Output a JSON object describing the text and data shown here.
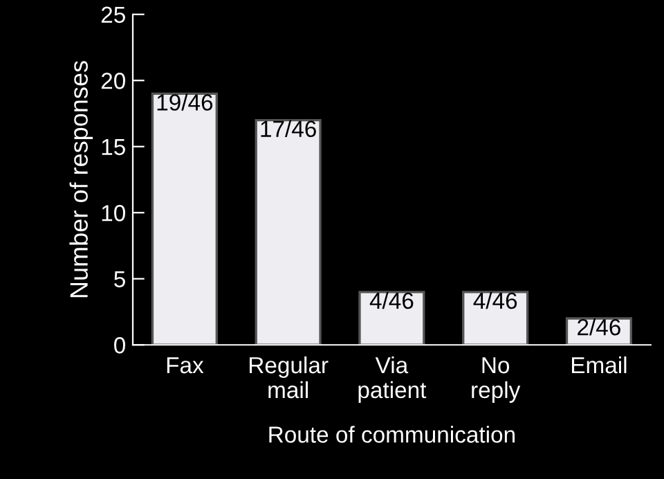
{
  "chart_data": {
    "type": "bar",
    "xlabel": "Route of communication",
    "ylabel": "Number of responses",
    "categories": [
      "Fax",
      "Regular\nmail",
      "Via\npatient",
      "No\nreply",
      "Email"
    ],
    "values": [
      19,
      17,
      4,
      4,
      2
    ],
    "value_labels": [
      "19/46",
      "17/46",
      "4/46",
      "4/46",
      "2/46"
    ],
    "color": "#eeeef2",
    "ylim": [
      0,
      25
    ],
    "yticks": [
      0,
      5,
      10,
      15,
      20,
      25
    ],
    "grid": false,
    "legend": false
  }
}
